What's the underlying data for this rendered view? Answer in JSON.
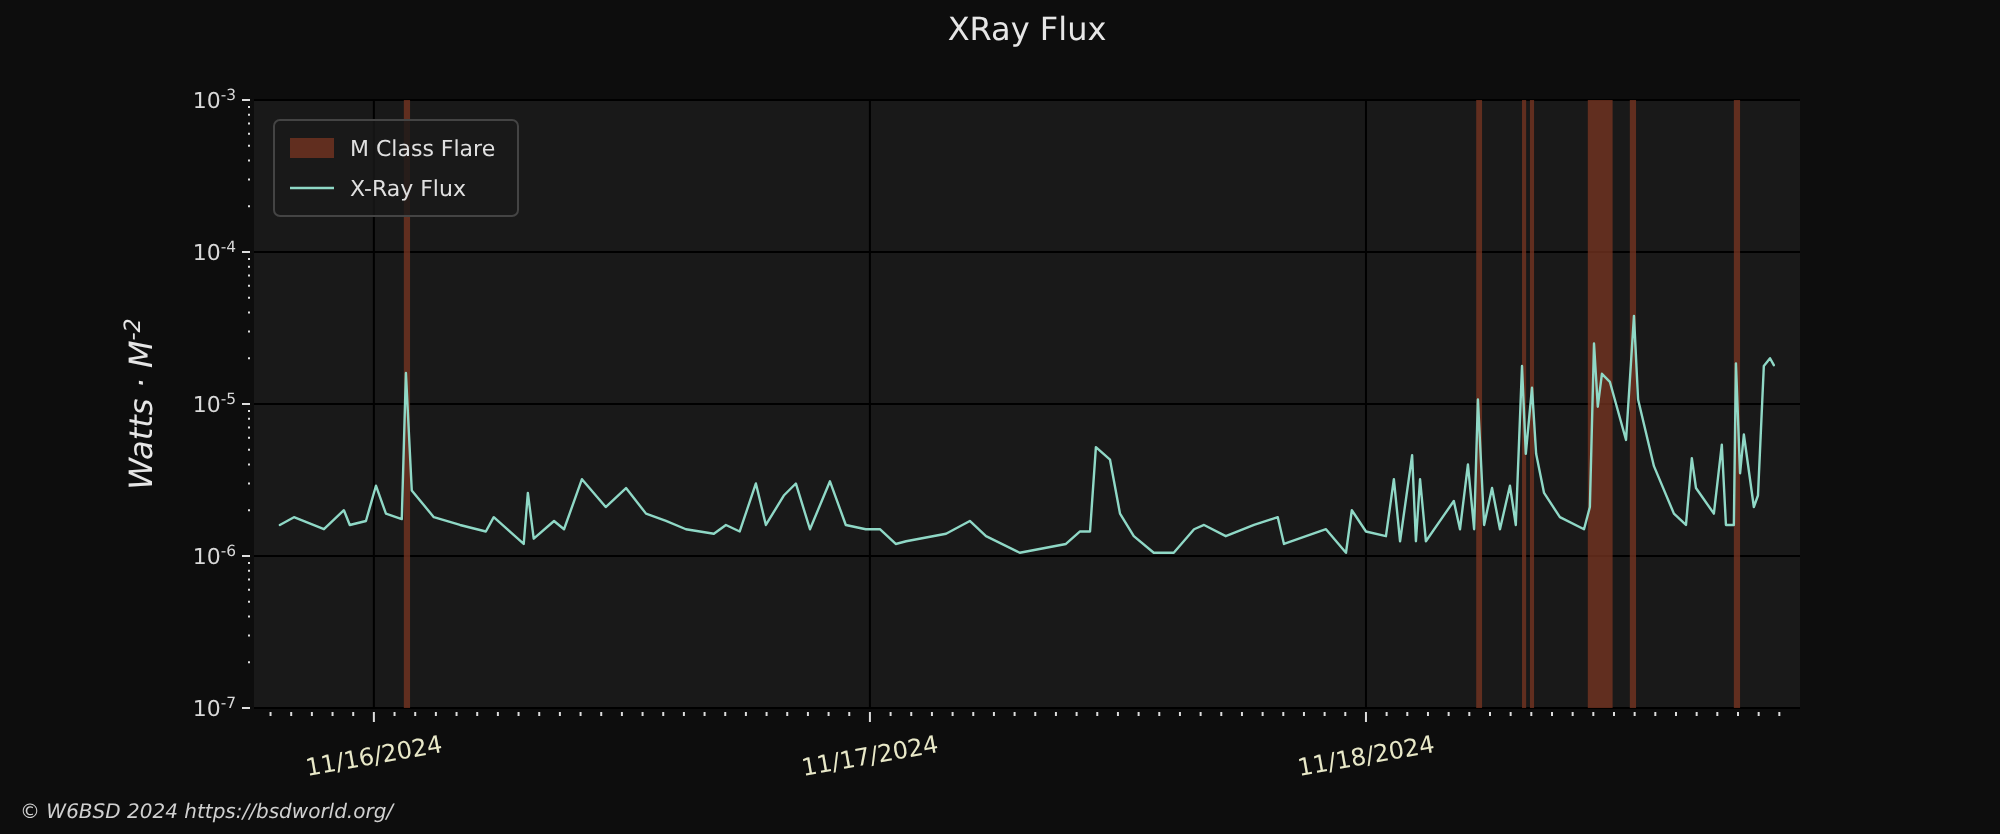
{
  "chart_data": {
    "type": "line",
    "title": "XRay Flux",
    "ylabel": "Watts · M$^{-2}$",
    "log": true,
    "grid": true,
    "legend": "top left",
    "marker": "none",
    "line_style": "solid",
    "xlim": [
      "2024-11-15T18:12",
      "2024-11-18T21:00"
    ],
    "ylim": [
      1e-07,
      0.001
    ],
    "yticks": [
      {
        "value": 1e-07,
        "label": "10$^{-7}$"
      },
      {
        "value": 2e-07,
        "label": null
      },
      {
        "value": 3e-07,
        "label": null
      },
      {
        "value": 4e-07,
        "label": null
      },
      {
        "value": 5e-07,
        "label": null
      },
      {
        "value": 6e-07,
        "label": null
      },
      {
        "value": 7e-07,
        "label": null
      },
      {
        "value": 8e-07,
        "label": null
      },
      {
        "value": 9e-07,
        "label": null
      },
      {
        "value": 1e-06,
        "label": "10$^{-6}$"
      },
      {
        "value": 2e-06,
        "label": null
      },
      {
        "value": 3e-06,
        "label": null
      },
      {
        "value": 4e-06,
        "label": null
      },
      {
        "value": 5e-06,
        "label": null
      },
      {
        "value": 6e-06,
        "label": null
      },
      {
        "value": 7e-06,
        "label": null
      },
      {
        "value": 8e-06,
        "label": null
      },
      {
        "value": 9e-06,
        "label": null
      },
      {
        "value": 1e-05,
        "label": "10$^{-5}$"
      },
      {
        "value": 2e-05,
        "label": null
      },
      {
        "value": 3e-05,
        "label": null
      },
      {
        "value": 4e-05,
        "label": null
      },
      {
        "value": 5e-05,
        "label": null
      },
      {
        "value": 6e-05,
        "label": null
      },
      {
        "value": 7e-05,
        "label": null
      },
      {
        "value": 8e-05,
        "label": null
      },
      {
        "value": 9e-05,
        "label": null
      },
      {
        "value": 0.0001,
        "label": "10$^{-4}$"
      },
      {
        "value": 0.0002,
        "label": null
      },
      {
        "value": 0.0003,
        "label": null
      },
      {
        "value": 0.0004,
        "label": null
      },
      {
        "value": 0.0005,
        "label": null
      },
      {
        "value": 0.0006,
        "label": null
      },
      {
        "value": 0.0007,
        "label": null
      },
      {
        "value": 0.0008,
        "label": null
      },
      {
        "value": 0.0009,
        "label": null
      },
      {
        "value": 0.001,
        "label": "10$^{-3}$"
      }
    ],
    "xticks": [
      {
        "value": "2024-11-15T19:00",
        "label": null
      },
      {
        "value": "2024-11-15T20:00",
        "label": null
      },
      {
        "value": "2024-11-15T21:00",
        "label": null
      },
      {
        "value": "2024-11-15T22:00",
        "label": null
      },
      {
        "value": "2024-11-15T23:00",
        "label": null
      },
      {
        "value": "2024-11-16",
        "label": "11/16/2024"
      },
      {
        "value": "2024-11-16T01:00",
        "label": null
      },
      {
        "value": "2024-11-16T02:00",
        "label": null
      },
      {
        "value": "2024-11-16T03:00",
        "label": null
      },
      {
        "value": "2024-11-16T04:00",
        "label": null
      },
      {
        "value": "2024-11-16T05:00",
        "label": null
      },
      {
        "value": "2024-11-16T06:00",
        "label": null
      },
      {
        "value": "2024-11-16T07:00",
        "label": null
      },
      {
        "value": "2024-11-16T08:00",
        "label": null
      },
      {
        "value": "2024-11-16T09:00",
        "label": null
      },
      {
        "value": "2024-11-16T10:00",
        "label": null
      },
      {
        "value": "2024-11-16T11:00",
        "label": null
      },
      {
        "value": "2024-11-16T12:00",
        "label": null
      },
      {
        "value": "2024-11-16T13:00",
        "label": null
      },
      {
        "value": "2024-11-16T14:00",
        "label": null
      },
      {
        "value": "2024-11-16T15:00",
        "label": null
      },
      {
        "value": "2024-11-16T16:00",
        "label": null
      },
      {
        "value": "2024-11-16T17:00",
        "label": null
      },
      {
        "value": "2024-11-16T18:00",
        "label": null
      },
      {
        "value": "2024-11-16T19:00",
        "label": null
      },
      {
        "value": "2024-11-16T20:00",
        "label": null
      },
      {
        "value": "2024-11-16T21:00",
        "label": null
      },
      {
        "value": "2024-11-16T22:00",
        "label": null
      },
      {
        "value": "2024-11-16T23:00",
        "label": null
      },
      {
        "value": "2024-11-17",
        "label": "11/17/2024"
      },
      {
        "value": "2024-11-17T01:00",
        "label": null
      },
      {
        "value": "2024-11-17T02:00",
        "label": null
      },
      {
        "value": "2024-11-17T03:00",
        "label": null
      },
      {
        "value": "2024-11-17T04:00",
        "label": null
      },
      {
        "value": "2024-11-17T05:00",
        "label": null
      },
      {
        "value": "2024-11-17T06:00",
        "label": null
      },
      {
        "value": "2024-11-17T07:00",
        "label": null
      },
      {
        "value": "2024-11-17T08:00",
        "label": null
      },
      {
        "value": "2024-11-17T09:00",
        "label": null
      },
      {
        "value": "2024-11-17T10:00",
        "label": null
      },
      {
        "value": "2024-11-17T11:00",
        "label": null
      },
      {
        "value": "2024-11-17T12:00",
        "label": null
      },
      {
        "value": "2024-11-17T13:00",
        "label": null
      },
      {
        "value": "2024-11-17T14:00",
        "label": null
      },
      {
        "value": "2024-11-17T15:00",
        "label": null
      },
      {
        "value": "2024-11-17T16:00",
        "label": null
      },
      {
        "value": "2024-11-17T17:00",
        "label": null
      },
      {
        "value": "2024-11-17T18:00",
        "label": null
      },
      {
        "value": "2024-11-17T19:00",
        "label": null
      },
      {
        "value": "2024-11-17T20:00",
        "label": null
      },
      {
        "value": "2024-11-17T21:00",
        "label": null
      },
      {
        "value": "2024-11-17T22:00",
        "label": null
      },
      {
        "value": "2024-11-17T23:00",
        "label": null
      },
      {
        "value": "2024-11-18",
        "label": "11/18/2024"
      },
      {
        "value": "2024-11-18T01:00",
        "label": null
      },
      {
        "value": "2024-11-18T02:00",
        "label": null
      },
      {
        "value": "2024-11-18T03:00",
        "label": null
      },
      {
        "value": "2024-11-18T04:00",
        "label": null
      },
      {
        "value": "2024-11-18T05:00",
        "label": null
      },
      {
        "value": "2024-11-18T06:00",
        "label": null
      },
      {
        "value": "2024-11-18T07:00",
        "label": null
      },
      {
        "value": "2024-11-18T08:00",
        "label": null
      },
      {
        "value": "2024-11-18T09:00",
        "label": null
      },
      {
        "value": "2024-11-18T10:00",
        "label": null
      },
      {
        "value": "2024-11-18T11:00",
        "label": null
      },
      {
        "value": "2024-11-18T12:00",
        "label": null
      },
      {
        "value": "2024-11-18T13:00",
        "label": null
      },
      {
        "value": "2024-11-18T14:00",
        "label": null
      },
      {
        "value": "2024-11-18T15:00",
        "label": null
      },
      {
        "value": "2024-11-18T16:00",
        "label": null
      },
      {
        "value": "2024-11-18T17:00",
        "label": null
      },
      {
        "value": "2024-11-18T18:00",
        "label": null
      },
      {
        "value": "2024-11-18T19:00",
        "label": null
      },
      {
        "value": "2024-11-18T20:00",
        "label": null
      }
    ],
    "bands": [
      {
        "axis": "x",
        "from": "2024-11-16T01:27",
        "to": "2024-11-16T01:45",
        "label": "M Class Flare",
        "color": "#7a3522"
      },
      {
        "axis": "x",
        "from": "2024-11-18T05:20",
        "to": "2024-11-18T05:37",
        "color": "#7a3522"
      },
      {
        "axis": "x",
        "from": "2024-11-18T07:33",
        "to": "2024-11-18T07:45",
        "color": "#7a3522"
      },
      {
        "axis": "x",
        "from": "2024-11-18T07:56",
        "to": "2024-11-18T08:08",
        "color": "#7a3522"
      },
      {
        "axis": "x",
        "from": "2024-11-18T10:44",
        "to": "2024-11-18T11:56",
        "color": "#7a3522"
      },
      {
        "axis": "x",
        "from": "2024-11-18T12:46",
        "to": "2024-11-18T13:04",
        "color": "#7a3522"
      },
      {
        "axis": "x",
        "from": "2024-11-18T17:48",
        "to": "2024-11-18T18:06",
        "color": "#7a3522"
      }
    ],
    "series": [
      {
        "name": "X-Ray Flux",
        "color": "#8fd8c6",
        "x": [
          "2024-11-15T19:27",
          "2024-11-15T20:08",
          "2024-11-15T21:35",
          "2024-11-15T22:33",
          "2024-11-15T22:50",
          "2024-11-15T23:37",
          "2024-11-16T00:06",
          "2024-11-16T00:35",
          "2024-11-16T01:21",
          "2024-11-16T01:33",
          "2024-11-16T01:50",
          "2024-11-16T02:54",
          "2024-11-16T04:10",
          "2024-11-16T05:25",
          "2024-11-16T05:48",
          "2024-11-16T07:15",
          "2024-11-16T07:27",
          "2024-11-16T07:44",
          "2024-11-16T08:43",
          "2024-11-16T09:12",
          "2024-11-16T10:04",
          "2024-11-16T11:13",
          "2024-11-16T12:12",
          "2024-11-16T13:10",
          "2024-11-16T14:08",
          "2024-11-16T15:06",
          "2024-11-16T16:27",
          "2024-11-16T17:02",
          "2024-11-16T17:42",
          "2024-11-16T18:29",
          "2024-11-16T18:58",
          "2024-11-16T19:50",
          "2024-11-16T20:25",
          "2024-11-16T21:06",
          "2024-11-16T22:04",
          "2024-11-16T22:50",
          "2024-11-16T23:48",
          "2024-11-17T00:29",
          "2024-11-17T01:15",
          "2024-11-17T01:45",
          "2024-11-17T03:41",
          "2024-11-17T04:50",
          "2024-11-17T05:37",
          "2024-11-17T07:15",
          "2024-11-17T09:29",
          "2024-11-17T10:10",
          "2024-11-17T10:39",
          "2024-11-17T10:56",
          "2024-11-17T11:37",
          "2024-11-17T12:06",
          "2024-11-17T12:46",
          "2024-11-17T13:44",
          "2024-11-17T14:42",
          "2024-11-17T15:41",
          "2024-11-17T16:10",
          "2024-11-17T17:13",
          "2024-11-17T18:35",
          "2024-11-17T19:44",
          "2024-11-17T20:02",
          "2024-11-17T21:06",
          "2024-11-17T22:04",
          "2024-11-17T23:02",
          "2024-11-17T23:19",
          "2024-11-18T00:00",
          "2024-11-18T00:58",
          "2024-11-18T01:21",
          "2024-11-18T01:39",
          "2024-11-18T02:14",
          "2024-11-18T02:25",
          "2024-11-18T02:37",
          "2024-11-18T02:54",
          "2024-11-18T03:46",
          "2024-11-18T04:15",
          "2024-11-18T04:33",
          "2024-11-18T04:56",
          "2024-11-18T05:14",
          "2024-11-18T05:25",
          "2024-11-18T05:43",
          "2024-11-18T06:06",
          "2024-11-18T06:29",
          "2024-11-18T06:58",
          "2024-11-18T07:15",
          "2024-11-18T07:33",
          "2024-11-18T07:44",
          "2024-11-18T08:02",
          "2024-11-18T08:14",
          "2024-11-18T08:37",
          "2024-11-18T09:23",
          "2024-11-18T10:33",
          "2024-11-18T10:50",
          "2024-11-18T11:02",
          "2024-11-18T11:13",
          "2024-11-18T11:25",
          "2024-11-18T11:48",
          "2024-11-18T12:35",
          "2024-11-18T12:58",
          "2024-11-18T13:10",
          "2024-11-18T13:56",
          "2024-11-18T14:54",
          "2024-11-18T15:29",
          "2024-11-18T15:46",
          "2024-11-18T15:58",
          "2024-11-18T16:50",
          "2024-11-18T17:13",
          "2024-11-18T17:25",
          "2024-11-18T17:48",
          "2024-11-18T17:54",
          "2024-11-18T18:06",
          "2024-11-18T18:17",
          "2024-11-18T18:46",
          "2024-11-18T18:58",
          "2024-11-18T19:15",
          "2024-11-18T19:33",
          "2024-11-18T19:44"
        ],
        "values": [
          1.6e-06,
          1.8e-06,
          1.5e-06,
          2e-06,
          1.6e-06,
          1.7e-06,
          2.9e-06,
          1.9e-06,
          1.75e-06,
          1.6e-05,
          2.7e-06,
          1.8e-06,
          1.6e-06,
          1.45e-06,
          1.8e-06,
          1.2e-06,
          2.6e-06,
          1.3e-06,
          1.7e-06,
          1.5e-06,
          3.2e-06,
          2.1e-06,
          2.8e-06,
          1.9e-06,
          1.7e-06,
          1.5e-06,
          1.4e-06,
          1.6e-06,
          1.45e-06,
          3e-06,
          1.6e-06,
          2.5e-06,
          3e-06,
          1.5e-06,
          3.1e-06,
          1.6e-06,
          1.5e-06,
          1.5e-06,
          1.2e-06,
          1.25e-06,
          1.4e-06,
          1.7e-06,
          1.35e-06,
          1.05e-06,
          1.2e-06,
          1.45e-06,
          1.45e-06,
          5.2e-06,
          4.3e-06,
          1.9e-06,
          1.35e-06,
          1.05e-06,
          1.05e-06,
          1.5e-06,
          1.6e-06,
          1.35e-06,
          1.6e-06,
          1.8e-06,
          1.2e-06,
          1.35e-06,
          1.5e-06,
          1.05e-06,
          2e-06,
          1.45e-06,
          1.35e-06,
          3.2e-06,
          1.25e-06,
          4.6e-06,
          1.25e-06,
          3.2e-06,
          1.25e-06,
          1.85e-06,
          2.3e-06,
          1.5e-06,
          4e-06,
          1.5e-06,
          1.07e-05,
          1.6e-06,
          2.8e-06,
          1.5e-06,
          2.9e-06,
          1.6e-06,
          1.78e-05,
          4.7e-06,
          1.28e-05,
          4.7e-06,
          2.6e-06,
          1.8e-06,
          1.5e-06,
          2.1e-06,
          2.5e-05,
          9.6e-06,
          1.58e-05,
          1.4e-05,
          5.8e-06,
          3.8e-05,
          1.07e-05,
          3.9e-06,
          1.9e-06,
          1.6e-06,
          4.4e-06,
          2.8e-06,
          1.9e-06,
          5.4e-06,
          1.6e-06,
          1.6e-06,
          1.85e-05,
          3.5e-06,
          6.3e-06,
          2.1e-06,
          2.5e-06,
          1.78e-05,
          2e-05,
          1.8e-05
        ]
      }
    ],
    "annotations": [
      "© W6BSD 2024 https://bsdworld.org/"
    ]
  }
}
